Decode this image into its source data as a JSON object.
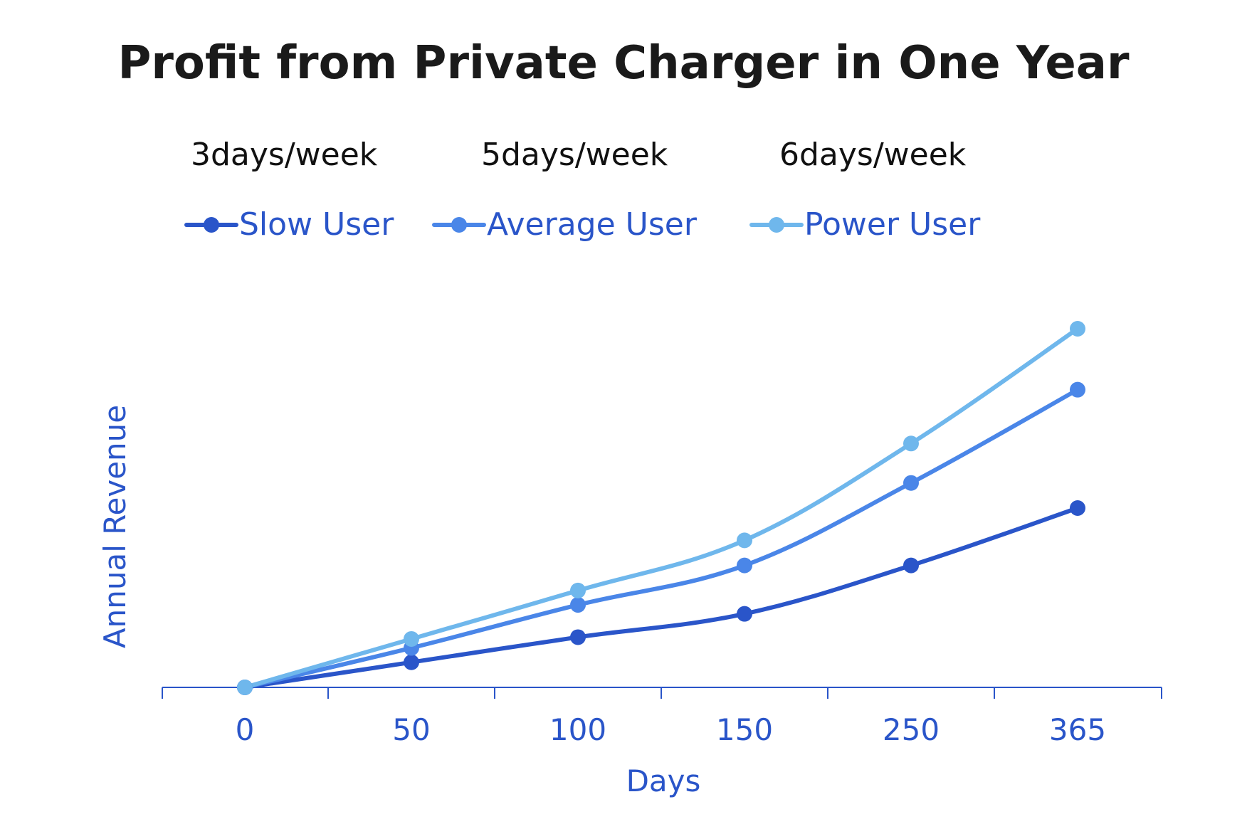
{
  "chart_data": {
    "type": "line",
    "title": "Profit from Private Charger in One Year",
    "xlabel": "Days",
    "ylabel": "Annual Revenue",
    "categories": [
      "0",
      "50",
      "100",
      "150",
      "250",
      "365"
    ],
    "ylim": [
      0,
      100
    ],
    "grid": false,
    "legend_position": "top",
    "y_tick_labels_shown": false,
    "series": [
      {
        "name": "Slow User",
        "frequency": "3days/week",
        "color": "#2a55c9",
        "values": [
          0,
          7,
          14,
          20.5,
          34,
          50
        ]
      },
      {
        "name": "Average User",
        "frequency": "5days/week",
        "color": "#4a86e8",
        "values": [
          0,
          11,
          23,
          34,
          57,
          83
        ]
      },
      {
        "name": "Power User",
        "frequency": "6days/week",
        "color": "#6fb7ec",
        "values": [
          0,
          13.5,
          27,
          41,
          68,
          100
        ]
      }
    ],
    "axis_color": "#2a55c9",
    "text_color": "#2a55c9"
  }
}
